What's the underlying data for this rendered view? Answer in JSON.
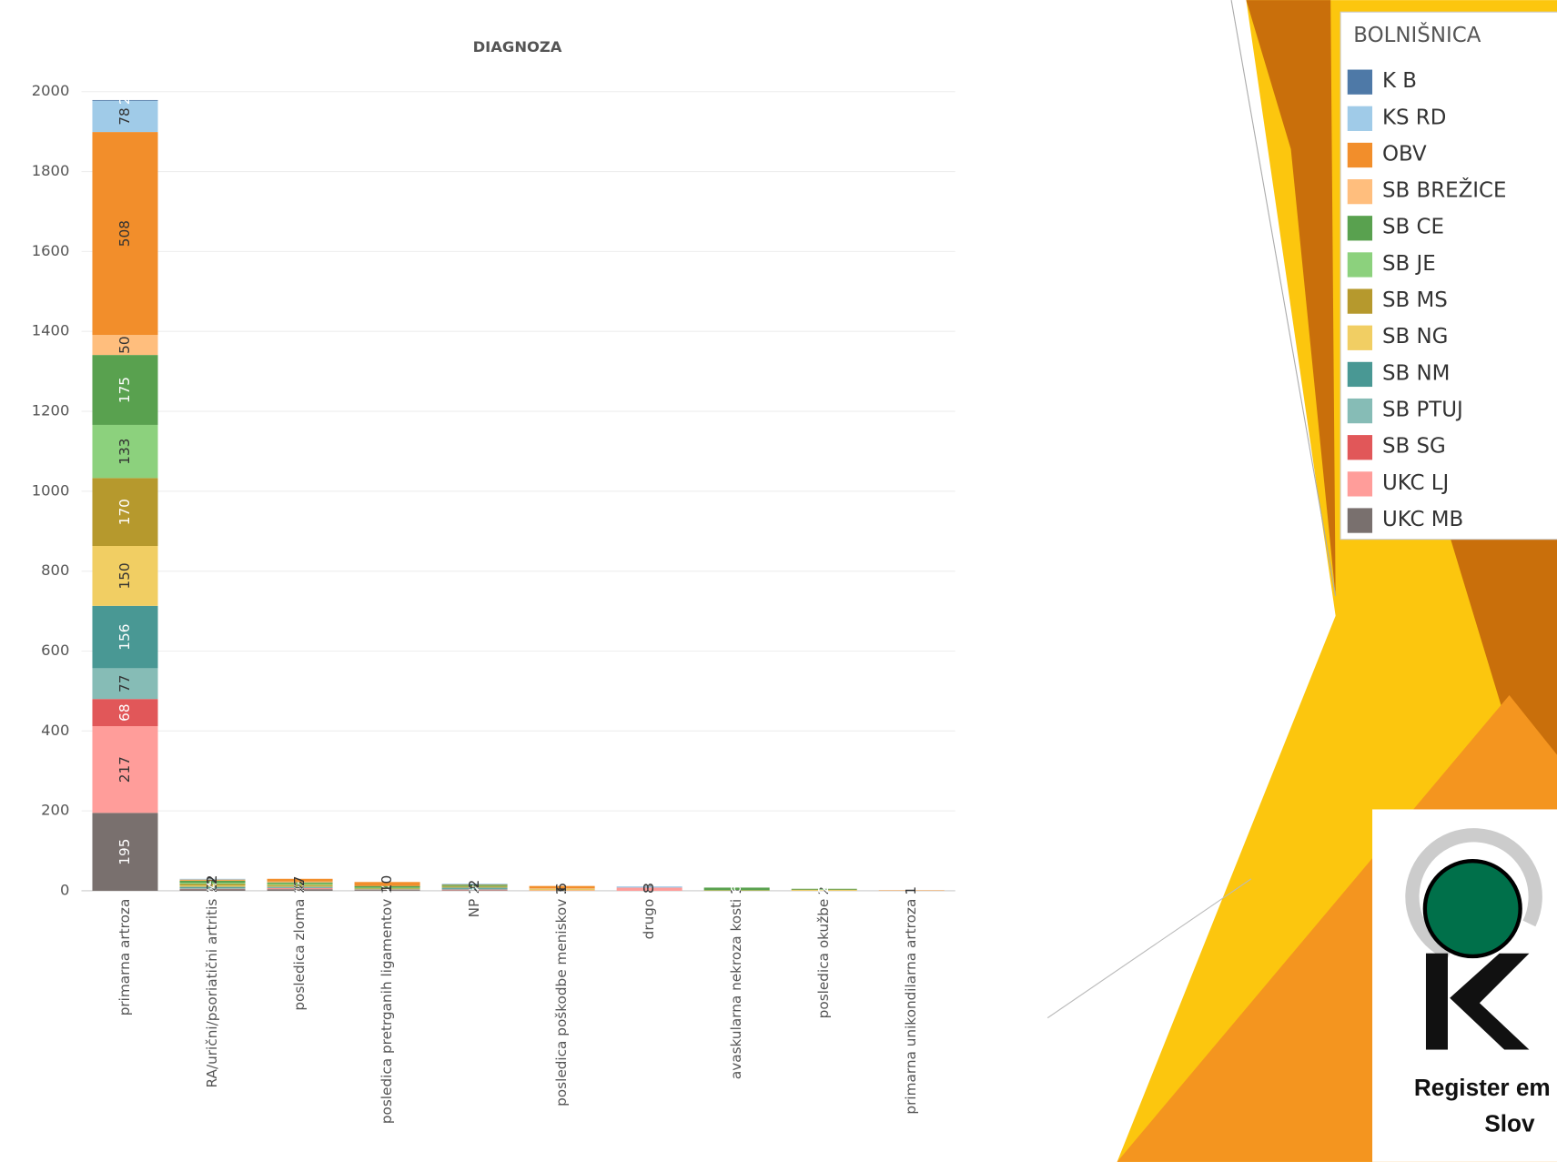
{
  "chart_data": {
    "type": "stacked_bar",
    "title": "DIAGNOZA",
    "legend_title": "BOLNIŠNICA",
    "legend_position": "right",
    "grid": true,
    "categories": [
      "primarna artroza",
      "RA/urični/psoriatični artritis",
      "posledica zloma",
      "posledica pretrganih ligamentov",
      "NP",
      "posledica poškodbe meniskov",
      "drugo",
      "avaskularna nekroza kosti",
      "posledica okužbe",
      "primarna unikondilarna artroza"
    ],
    "ylim": [
      0,
      2075
    ],
    "yticks": [
      0,
      200,
      400,
      600,
      800,
      1000,
      1200,
      1400,
      1600,
      1800,
      2000
    ],
    "series": [
      {
        "name": "K B",
        "color": "#4e79a7",
        "values": [
          2,
          null,
          null,
          null,
          null,
          null,
          null,
          null,
          null,
          null
        ]
      },
      {
        "name": "KS RD",
        "color": "#a0cbe8",
        "values": [
          78,
          2,
          null,
          null,
          2,
          null,
          3,
          null,
          null,
          null
        ]
      },
      {
        "name": "OBV",
        "color": "#f28e2b",
        "values": [
          508,
          2,
          7,
          10,
          1,
          6,
          null,
          null,
          null,
          1
        ]
      },
      {
        "name": "SB BREŽICE",
        "color": "#ffbe7d",
        "values": [
          50,
          1,
          2,
          null,
          null,
          1,
          null,
          null,
          null,
          null
        ]
      },
      {
        "name": "SB CE",
        "color": "#59a14f",
        "values": [
          175,
          5,
          3,
          4,
          3,
          null,
          null,
          6,
          2,
          null
        ]
      },
      {
        "name": "SB JE",
        "color": "#8cd17d",
        "values": [
          133,
          3,
          3,
          2,
          1,
          null,
          null,
          1,
          null,
          null
        ]
      },
      {
        "name": "SB MS",
        "color": "#b6992d",
        "values": [
          170,
          4,
          3,
          2,
          2,
          1,
          null,
          1,
          1,
          null
        ]
      },
      {
        "name": "SB NG",
        "color": "#f1ce63",
        "values": [
          150,
          3,
          2,
          null,
          1,
          3,
          null,
          null,
          2,
          null
        ]
      },
      {
        "name": "SB NM",
        "color": "#499894",
        "values": [
          156,
          3,
          2,
          1,
          3,
          null,
          null,
          null,
          null,
          null
        ]
      },
      {
        "name": "SB PTUJ",
        "color": "#86bcb6",
        "values": [
          77,
          2,
          1,
          null,
          2,
          null,
          null,
          null,
          null,
          null
        ]
      },
      {
        "name": "SB SG",
        "color": "#e15759",
        "values": [
          68,
          1,
          1,
          null,
          1,
          null,
          null,
          null,
          null,
          null
        ]
      },
      {
        "name": "UKC LJ",
        "color": "#ff9d9a",
        "values": [
          217,
          null,
          2,
          1,
          1,
          1,
          8,
          null,
          null,
          null
        ]
      },
      {
        "name": "UKC MB",
        "color": "#79706e",
        "values": [
          195,
          4,
          4,
          2,
          1,
          null,
          null,
          null,
          null,
          null
        ]
      }
    ]
  },
  "logo": {
    "line1": "Register em",
    "line2": "Slov"
  }
}
